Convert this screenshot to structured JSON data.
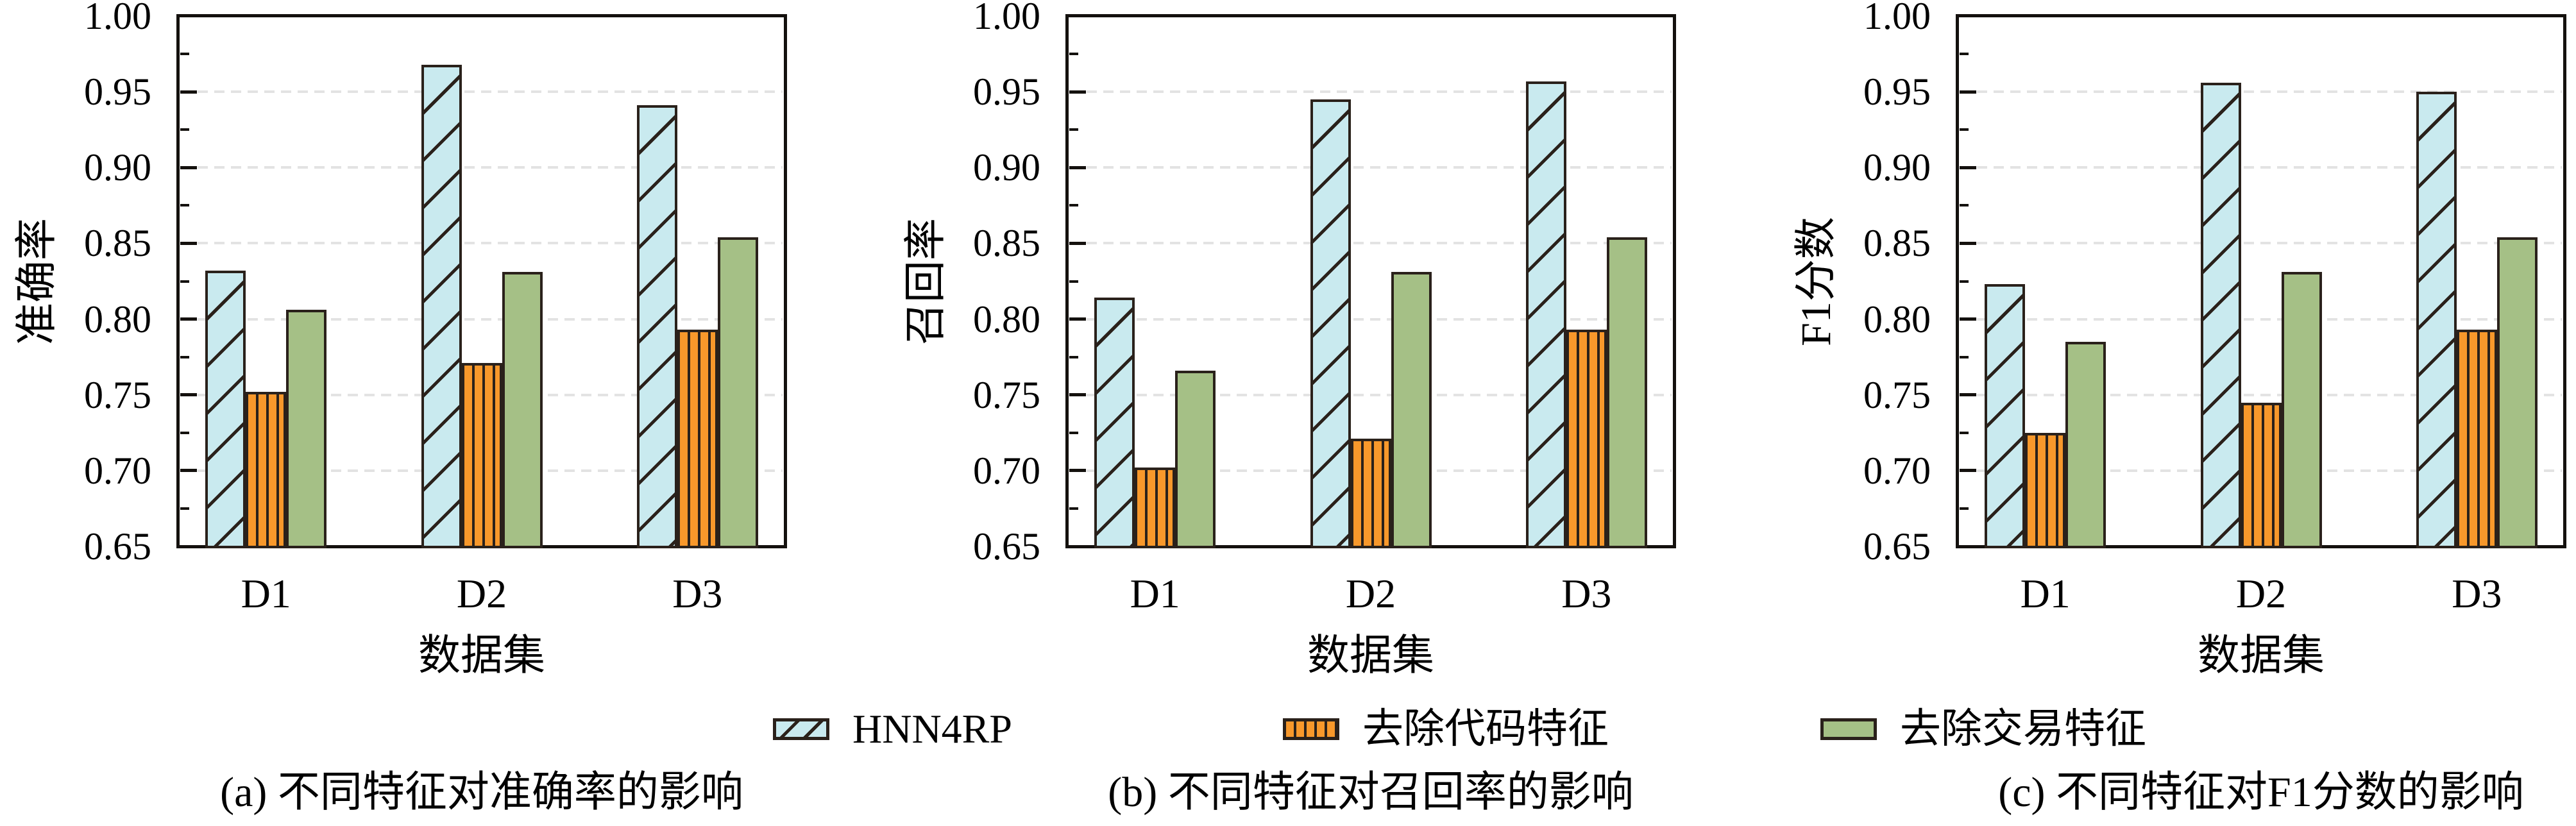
{
  "figure": {
    "background": "#ffffff",
    "axis_color": "#14110e",
    "ink_color": "#2a211b",
    "grid_color": "#e3e3e3",
    "text_color": "#000000",
    "legend_position": "bottom-center",
    "series_styles": [
      {
        "name": "HNN4RP",
        "fill": "#c9eaef",
        "hatch": "diagonal"
      },
      {
        "name": "去除代码特征",
        "fill": "#f8982b",
        "hatch": "vertical"
      },
      {
        "name": "去除交易特征",
        "fill": "#a5c086",
        "hatch": "none"
      }
    ]
  },
  "chart_data": [
    {
      "id": "a",
      "type": "bar",
      "title": "(a) 不同特征对准确率的影响",
      "xlabel": "数据集",
      "ylabel": "准确率",
      "categories": [
        "D1",
        "D2",
        "D3"
      ],
      "series": [
        {
          "name": "HNN4RP",
          "values": [
            0.832,
            0.968,
            0.941
          ]
        },
        {
          "name": "去除代码特征",
          "values": [
            0.752,
            0.771,
            0.793
          ]
        },
        {
          "name": "去除交易特征",
          "values": [
            0.806,
            0.831,
            0.854
          ]
        }
      ],
      "ylim": [
        0.65,
        1.0
      ],
      "yticks": [
        "0.65",
        "0.70",
        "0.75",
        "0.80",
        "0.85",
        "0.90",
        "0.95",
        "1.00"
      ],
      "grid": "dashed-horizontal",
      "minor_ticks_step": 0.025
    },
    {
      "id": "b",
      "type": "bar",
      "title": "(b) 不同特征对召回率的影响",
      "xlabel": "数据集",
      "ylabel": "召回率",
      "categories": [
        "D1",
        "D2",
        "D3"
      ],
      "series": [
        {
          "name": "HNN4RP",
          "values": [
            0.814,
            0.945,
            0.957
          ]
        },
        {
          "name": "去除代码特征",
          "values": [
            0.702,
            0.721,
            0.793
          ]
        },
        {
          "name": "去除交易特征",
          "values": [
            0.766,
            0.831,
            0.854
          ]
        }
      ],
      "ylim": [
        0.65,
        1.0
      ],
      "yticks": [
        "0.65",
        "0.70",
        "0.75",
        "0.80",
        "0.85",
        "0.90",
        "0.95",
        "1.00"
      ],
      "grid": "dashed-horizontal",
      "minor_ticks_step": 0.025
    },
    {
      "id": "c",
      "type": "bar",
      "title": "(c) 不同特征对F1分数的影响",
      "xlabel": "数据集",
      "ylabel": "F1分数",
      "categories": [
        "D1",
        "D2",
        "D3"
      ],
      "series": [
        {
          "name": "HNN4RP",
          "values": [
            0.823,
            0.956,
            0.95
          ]
        },
        {
          "name": "去除代码特征",
          "values": [
            0.725,
            0.745,
            0.793
          ]
        },
        {
          "name": "去除交易特征",
          "values": [
            0.785,
            0.831,
            0.854
          ]
        }
      ],
      "ylim": [
        0.65,
        1.0
      ],
      "yticks": [
        "0.65",
        "0.70",
        "0.75",
        "0.80",
        "0.85",
        "0.90",
        "0.95",
        "1.00"
      ],
      "grid": "dashed-horizontal",
      "minor_ticks_step": 0.025
    }
  ]
}
